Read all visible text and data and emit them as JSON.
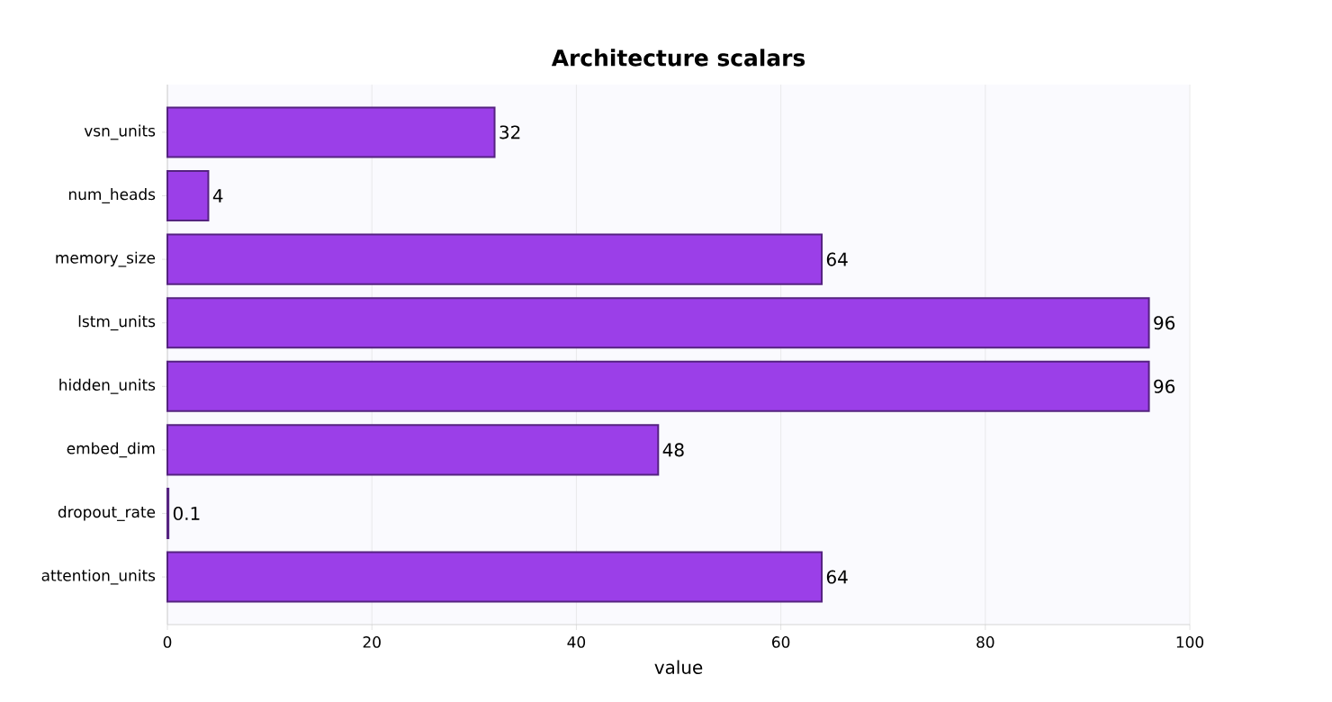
{
  "chart_data": {
    "type": "bar",
    "orientation": "horizontal",
    "title": "Architecture scalars",
    "xlabel": "value",
    "categories": [
      "vsn_units",
      "num_heads",
      "memory_size",
      "lstm_units",
      "hidden_units",
      "embed_dim",
      "dropout_rate",
      "attention_units"
    ],
    "values": [
      32,
      4,
      64,
      96,
      96,
      48,
      0.1,
      64
    ],
    "color": "#9b3fe8",
    "xlim": [
      0,
      100
    ],
    "xticks": [
      0,
      20,
      40,
      60,
      80,
      100
    ],
    "grid": "x",
    "data_labels": true
  }
}
